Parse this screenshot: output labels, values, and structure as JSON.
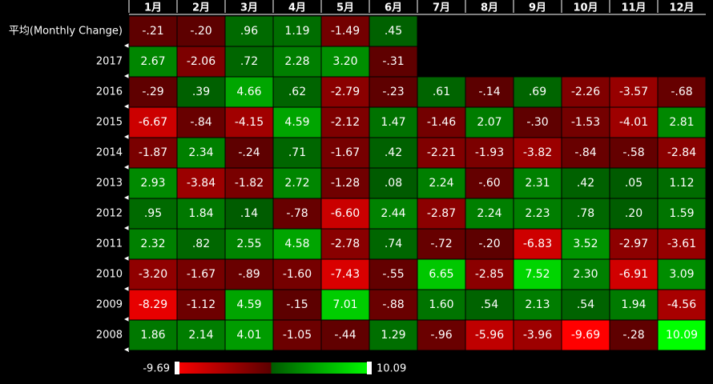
{
  "chart_data": {
    "type": "heatmap",
    "categories": [
      "1月",
      "2月",
      "3月",
      "4月",
      "5月",
      "6月",
      "7月",
      "8月",
      "9月",
      "10月",
      "11月",
      "12月"
    ],
    "rows": [
      "平均(Monthly Change)",
      "2017",
      "2016",
      "2015",
      "2014",
      "2013",
      "2012",
      "2011",
      "2010",
      "2009",
      "2008"
    ],
    "values": [
      [
        -0.21,
        -0.2,
        0.96,
        1.19,
        -1.49,
        0.45,
        null,
        null,
        null,
        null,
        null,
        null
      ],
      [
        2.67,
        -2.06,
        0.72,
        2.28,
        3.2,
        -0.31,
        null,
        null,
        null,
        null,
        null,
        null
      ],
      [
        -0.29,
        0.39,
        4.66,
        0.62,
        -2.79,
        -0.23,
        0.61,
        -0.14,
        0.69,
        -2.26,
        -3.57,
        -0.68
      ],
      [
        -6.67,
        -0.84,
        -4.15,
        4.59,
        -2.12,
        1.47,
        -1.46,
        2.07,
        -0.3,
        -1.53,
        -4.01,
        2.81
      ],
      [
        -1.87,
        2.34,
        -0.24,
        0.71,
        -1.67,
        0.42,
        -2.21,
        -1.93,
        -3.82,
        -0.84,
        -0.58,
        -2.84
      ],
      [
        2.93,
        -3.84,
        -1.82,
        2.72,
        -1.28,
        0.08,
        2.24,
        -0.6,
        2.31,
        0.42,
        0.05,
        1.12
      ],
      [
        0.95,
        1.84,
        0.14,
        -0.78,
        -6.6,
        2.44,
        -2.87,
        2.24,
        2.23,
        0.78,
        0.2,
        1.59
      ],
      [
        2.32,
        0.82,
        2.55,
        4.58,
        -2.78,
        0.74,
        -0.72,
        -0.2,
        -6.83,
        3.52,
        -2.97,
        -3.61
      ],
      [
        -3.2,
        -1.67,
        -0.89,
        -1.6,
        -7.43,
        -0.55,
        6.65,
        -2.85,
        7.52,
        2.3,
        -6.91,
        3.09
      ],
      [
        -8.29,
        -1.12,
        4.59,
        -0.15,
        7.01,
        -0.88,
        1.6,
        0.54,
        2.13,
        0.54,
        1.94,
        -4.56
      ],
      [
        1.86,
        2.14,
        4.01,
        -1.05,
        -0.44,
        1.29,
        -0.96,
        -5.96,
        -3.96,
        -9.69,
        -0.28,
        10.09
      ]
    ],
    "value_labels": [
      [
        "-.21",
        "-.20",
        ".96",
        "1.19",
        "-1.49",
        ".45",
        null,
        null,
        null,
        null,
        null,
        null
      ],
      [
        "2.67",
        "-2.06",
        ".72",
        "2.28",
        "3.20",
        "-.31",
        null,
        null,
        null,
        null,
        null,
        null
      ],
      [
        "-.29",
        ".39",
        "4.66",
        ".62",
        "-2.79",
        "-.23",
        ".61",
        "-.14",
        ".69",
        "-2.26",
        "-3.57",
        "-.68"
      ],
      [
        "-6.67",
        "-.84",
        "-4.15",
        "4.59",
        "-2.12",
        "1.47",
        "-1.46",
        "2.07",
        "-.30",
        "-1.53",
        "-4.01",
        "2.81"
      ],
      [
        "-1.87",
        "2.34",
        "-.24",
        ".71",
        "-1.67",
        ".42",
        "-2.21",
        "-1.93",
        "-3.82",
        "-.84",
        "-.58",
        "-2.84"
      ],
      [
        "2.93",
        "-3.84",
        "-1.82",
        "2.72",
        "-1.28",
        ".08",
        "2.24",
        "-.60",
        "2.31",
        ".42",
        ".05",
        "1.12"
      ],
      [
        ".95",
        "1.84",
        ".14",
        "-.78",
        "-6.60",
        "2.44",
        "-2.87",
        "2.24",
        "2.23",
        ".78",
        ".20",
        "1.59"
      ],
      [
        "2.32",
        ".82",
        "2.55",
        "4.58",
        "-2.78",
        ".74",
        "-.72",
        "-.20",
        "-6.83",
        "3.52",
        "-2.97",
        "-3.61"
      ],
      [
        "-3.20",
        "-1.67",
        "-.89",
        "-1.60",
        "-7.43",
        "-.55",
        "6.65",
        "-2.85",
        "7.52",
        "2.30",
        "-6.91",
        "3.09"
      ],
      [
        "-8.29",
        "-1.12",
        "4.59",
        "-.15",
        "7.01",
        "-.88",
        "1.60",
        ".54",
        "2.13",
        ".54",
        "1.94",
        "-4.56"
      ],
      [
        "1.86",
        "2.14",
        "4.01",
        "-1.05",
        "-.44",
        "1.29",
        "-.96",
        "-5.96",
        "-3.96",
        "-9.69",
        "-.28",
        "10.09"
      ]
    ],
    "zlim": [
      -9.69,
      10.09
    ],
    "colorscale": [
      "#ff0000",
      "#5a0000",
      "#005a00",
      "#00ff00"
    ]
  }
}
